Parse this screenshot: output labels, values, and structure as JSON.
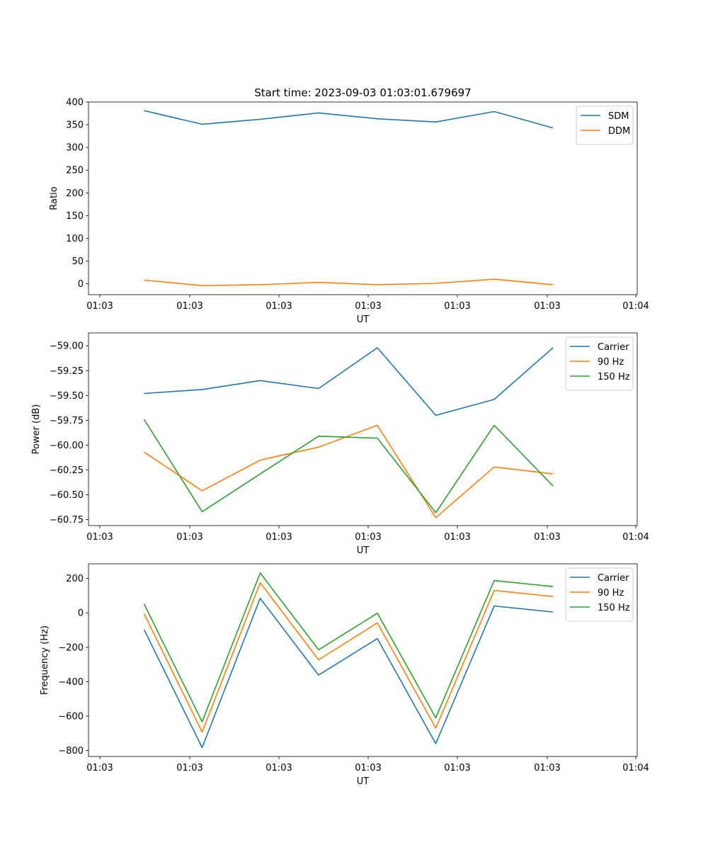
{
  "figure": {
    "title": "Start time: 2023-09-03 01:03:01.679697"
  },
  "colors": {
    "blue": "#1f77b4",
    "orange": "#ff7f0e",
    "green": "#2ca02c"
  },
  "chart_data": [
    {
      "id": "ratio",
      "type": "line",
      "title": "Start time: 2023-09-03 01:03:01.679697",
      "xlabel": "UT",
      "ylabel": "Ratio",
      "x_tick_labels": [
        "01:03",
        "01:03",
        "01:03",
        "01:03",
        "01:03",
        "01:03",
        "01:04"
      ],
      "y_ticks": [
        0,
        50,
        100,
        150,
        200,
        250,
        300,
        350,
        400
      ],
      "y_tick_labels": [
        "0",
        "50",
        "100",
        "150",
        "200",
        "250",
        "300",
        "350",
        "400"
      ],
      "ylim": [
        -24,
        400
      ],
      "legend_position": "top-right",
      "series": [
        {
          "name": "SDM",
          "color": "#1f77b4",
          "values": [
            381,
            351,
            362,
            376,
            363,
            356,
            379,
            343
          ]
        },
        {
          "name": "DDM",
          "color": "#ff7f0e",
          "values": [
            8,
            -4,
            -2,
            3,
            -2,
            1,
            10,
            -2
          ]
        }
      ]
    },
    {
      "id": "power",
      "type": "line",
      "title": "",
      "xlabel": "UT",
      "ylabel": "Power (dB)",
      "x_tick_labels": [
        "01:03",
        "01:03",
        "01:03",
        "01:03",
        "01:03",
        "01:03",
        "01:04"
      ],
      "y_ticks": [
        -60.75,
        -60.5,
        -60.25,
        -60.0,
        -59.75,
        -59.5,
        -59.25,
        -59.0
      ],
      "y_tick_labels": [
        "−60.75",
        "−60.50",
        "−60.25",
        "−60.00",
        "−59.75",
        "−59.50",
        "−59.25",
        "−59.00"
      ],
      "ylim": [
        -60.81,
        -58.87
      ],
      "legend_position": "top-right",
      "series": [
        {
          "name": "Carrier",
          "color": "#1f77b4",
          "values": [
            -59.48,
            -59.44,
            -59.35,
            -59.43,
            -59.02,
            -59.7,
            -59.54,
            -59.02
          ]
        },
        {
          "name": "90 Hz",
          "color": "#ff7f0e",
          "values": [
            -60.07,
            -60.46,
            -60.15,
            -60.02,
            -59.8,
            -60.73,
            -60.22,
            -60.29
          ]
        },
        {
          "name": "150 Hz",
          "color": "#2ca02c",
          "values": [
            -59.74,
            -60.67,
            -60.29,
            -59.91,
            -59.93,
            -60.68,
            -59.8,
            -60.41
          ]
        }
      ]
    },
    {
      "id": "frequency",
      "type": "line",
      "title": "",
      "xlabel": "UT",
      "ylabel": "Frequency (Hz)",
      "x_tick_labels": [
        "01:03",
        "01:03",
        "01:03",
        "01:03",
        "01:03",
        "01:03",
        "01:04"
      ],
      "y_ticks": [
        -800,
        -600,
        -400,
        -200,
        0,
        200
      ],
      "y_tick_labels": [
        "−800",
        "−600",
        "−400",
        "−200",
        "0",
        "200"
      ],
      "ylim": [
        -835,
        285
      ],
      "legend_position": "top-right",
      "series": [
        {
          "name": "Carrier",
          "color": "#1f77b4",
          "values": [
            -97,
            -783,
            85,
            -362,
            -150,
            -760,
            40,
            5
          ]
        },
        {
          "name": "90 Hz",
          "color": "#ff7f0e",
          "values": [
            -5,
            -693,
            175,
            -273,
            -58,
            -670,
            130,
            95
          ]
        },
        {
          "name": "150 Hz",
          "color": "#2ca02c",
          "values": [
            52,
            -633,
            232,
            -215,
            -2,
            -610,
            188,
            153
          ]
        }
      ]
    }
  ]
}
